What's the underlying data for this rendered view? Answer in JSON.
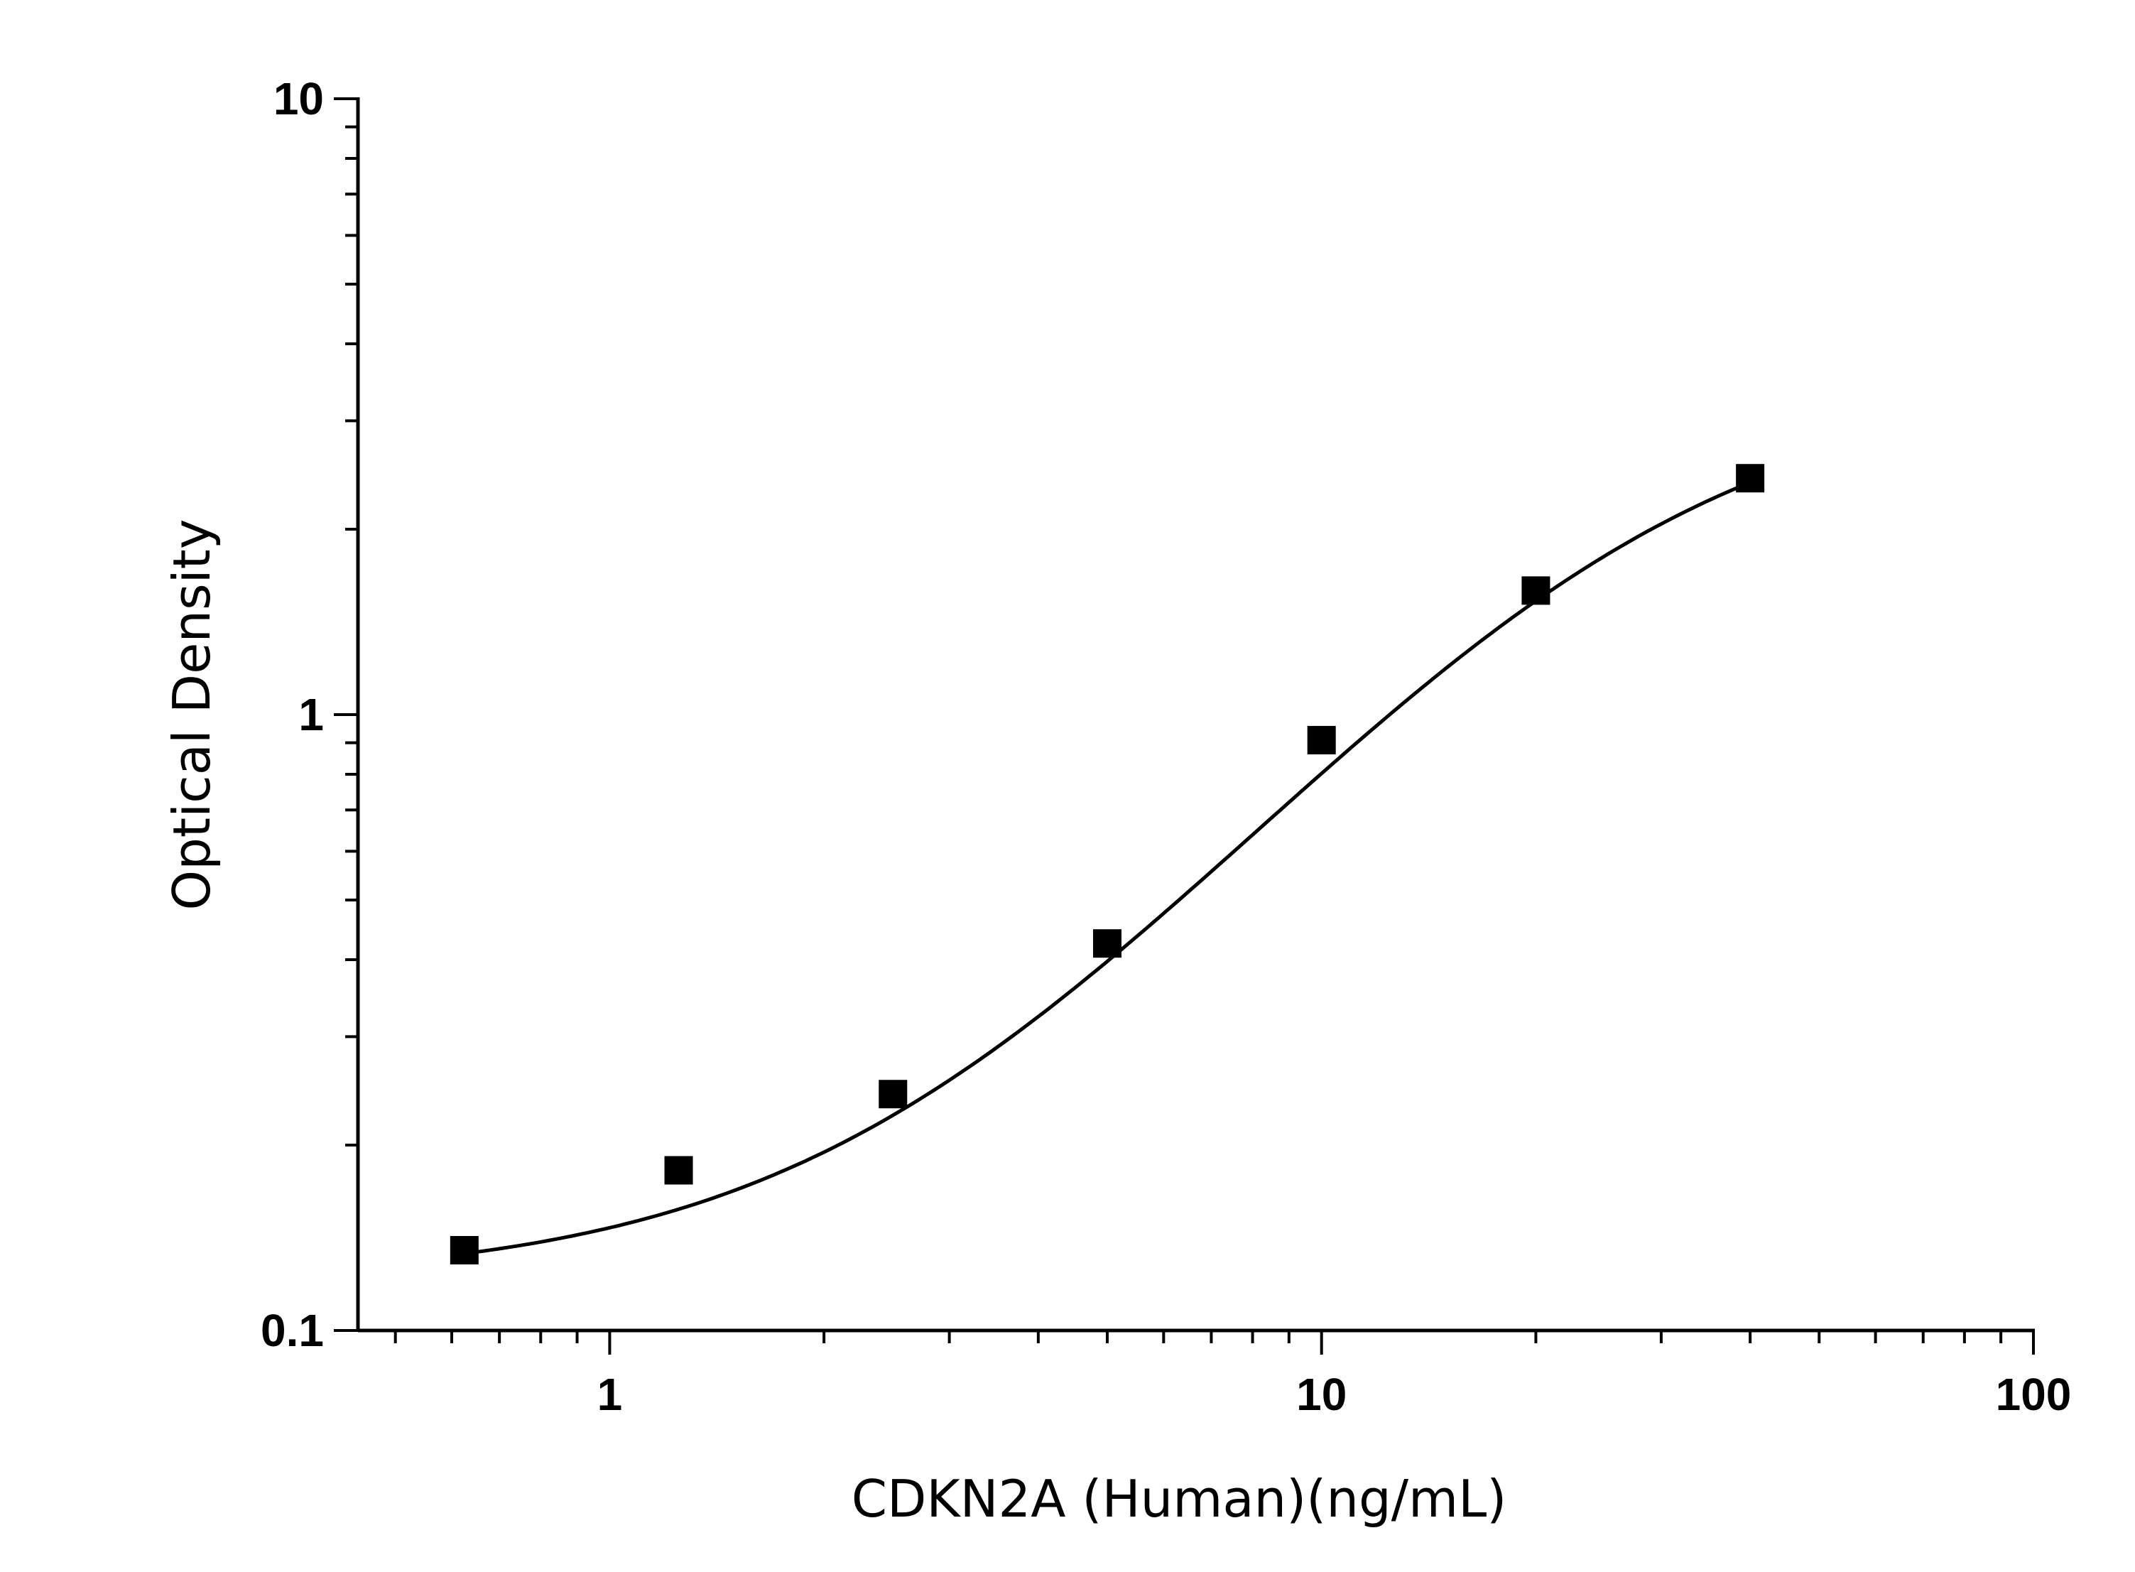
{
  "chart_data": {
    "type": "scatter",
    "title": "",
    "xlabel": "CDKN2A (Human)(ng/mL)",
    "ylabel": "Optical Density",
    "xscale": "log",
    "yscale": "log",
    "xlim": [
      0.443,
      100
    ],
    "ylim": [
      0.1,
      10
    ],
    "grid": false,
    "x_ticks": [
      {
        "value": 1,
        "label": "1"
      },
      {
        "value": 10,
        "label": "10"
      },
      {
        "value": 100,
        "label": "100"
      }
    ],
    "y_ticks": [
      {
        "value": 0.1,
        "label": "0.1"
      },
      {
        "value": 1,
        "label": "1"
      },
      {
        "value": 10,
        "label": "10"
      }
    ],
    "marker": "square",
    "color": "#000000",
    "fit_curve": "4-parameter logistic",
    "x": [
      0.625,
      1.25,
      2.5,
      5,
      10,
      20,
      40
    ],
    "y": [
      0.135,
      0.182,
      0.242,
      0.425,
      0.909,
      1.59,
      2.42
    ]
  }
}
